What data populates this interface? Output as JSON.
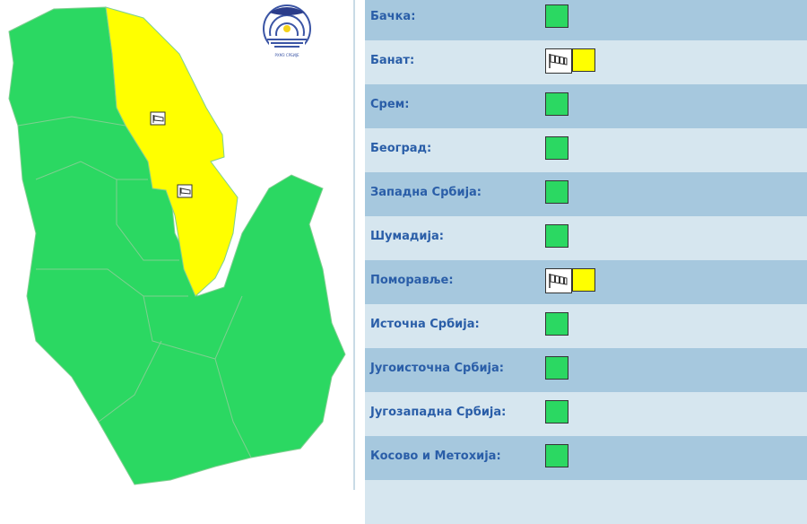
{
  "colors": {
    "green": "#2bd862",
    "yellow": "#ffff00",
    "row_dark": "#a6c8de",
    "row_light": "#d6e6ef",
    "label": "#2a5ea8"
  },
  "logo": {
    "text": "РХМЗ СРБИЈЕ"
  },
  "regions": [
    {
      "name": "Бачка:",
      "level": "green",
      "icon": null
    },
    {
      "name": "Банат:",
      "level": "yellow",
      "icon": "wind-icon"
    },
    {
      "name": "Срем:",
      "level": "green",
      "icon": null
    },
    {
      "name": "Београд:",
      "level": "green",
      "icon": null
    },
    {
      "name": "Западна Србија:",
      "level": "green",
      "icon": null
    },
    {
      "name": "Шумадија:",
      "level": "green",
      "icon": null
    },
    {
      "name": "Поморавље:",
      "level": "yellow",
      "icon": "wind-icon"
    },
    {
      "name": "Источна Србија:",
      "level": "green",
      "icon": null
    },
    {
      "name": "Југоисточна Србија:",
      "level": "green",
      "icon": null
    },
    {
      "name": "Југозападна Србија:",
      "level": "green",
      "icon": null
    },
    {
      "name": "Косово и Метохија:",
      "level": "green",
      "icon": null
    }
  ]
}
